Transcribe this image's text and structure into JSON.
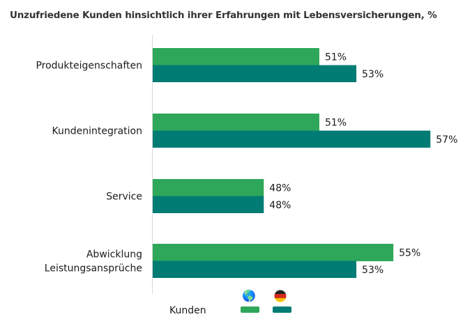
{
  "chart_data": {
    "type": "bar",
    "orientation": "horizontal",
    "title": "Unzufriedene Kunden hinsichtlich ihrer Erfahrungen mit Lebensversicherungen, %",
    "categories": [
      [
        "Produkteigenschaften"
      ],
      [
        "Kundenintegration"
      ],
      [
        "Service"
      ],
      [
        "Abwicklung",
        "Leistungsansprüche"
      ]
    ],
    "series": [
      {
        "name": "Global",
        "icon": "globe-icon",
        "color": "#2ea75a",
        "values": [
          51,
          51,
          48,
          55
        ]
      },
      {
        "name": "Deutschland",
        "icon": "germany-flag-icon",
        "color": "#007c74",
        "values": [
          53,
          57,
          48,
          53
        ]
      }
    ],
    "value_suffix": "%",
    "xlim": [
      42,
      58
    ],
    "grid": false,
    "legend": {
      "title": "Kunden",
      "placement": "bottom"
    }
  }
}
